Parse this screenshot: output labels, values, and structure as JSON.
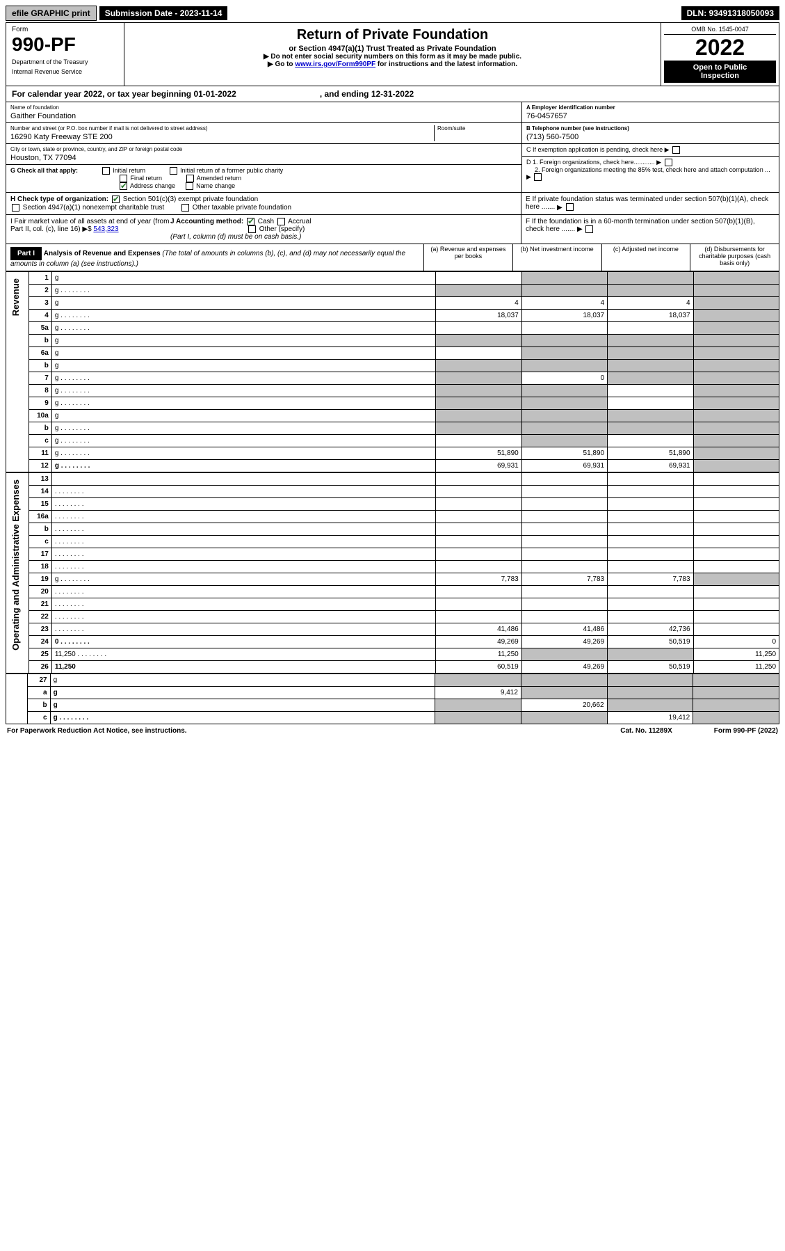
{
  "topbar": {
    "efile": "efile GRAPHIC print",
    "submission": "Submission Date - 2023-11-14",
    "dln": "DLN: 93491318050093"
  },
  "header": {
    "form_label": "Form",
    "form_num": "990-PF",
    "dept1": "Department of the Treasury",
    "dept2": "Internal Revenue Service",
    "title": "Return of Private Foundation",
    "subtitle": "or Section 4947(a)(1) Trust Treated as Private Foundation",
    "note1": "▶ Do not enter social security numbers on this form as it may be made public.",
    "note2_pre": "▶ Go to ",
    "note2_link": "www.irs.gov/Form990PF",
    "note2_post": " for instructions and the latest information.",
    "omb": "OMB No. 1545-0047",
    "year": "2022",
    "otp1": "Open to Public",
    "otp2": "Inspection"
  },
  "calyear": {
    "pre": "For calendar year 2022, or tax year beginning 01-01-2022",
    "post": ", and ending 12-31-2022"
  },
  "info": {
    "name_lbl": "Name of foundation",
    "name": "Gaither Foundation",
    "addr_lbl": "Number and street (or P.O. box number if mail is not delivered to street address)",
    "room_lbl": "Room/suite",
    "addr": "16290 Katy Freeway STE 200",
    "city_lbl": "City or town, state or province, country, and ZIP or foreign postal code",
    "city": "Houston, TX  77094",
    "a_lbl": "A Employer identification number",
    "a_val": "76-0457657",
    "b_lbl": "B Telephone number (see instructions)",
    "b_val": "(713) 560-7500",
    "c_lbl": "C If exemption application is pending, check here",
    "d1_lbl": "D 1. Foreign organizations, check here............",
    "d2_lbl": "2. Foreign organizations meeting the 85% test, check here and attach computation ...",
    "e_lbl": "E  If private foundation status was terminated under section 507(b)(1)(A), check here .......",
    "f_lbl": "F  If the foundation is in a 60-month termination under section 507(b)(1)(B), check here ......."
  },
  "g": {
    "label": "G Check all that apply:",
    "opts": [
      "Initial return",
      "Final return",
      "Address change",
      "Initial return of a former public charity",
      "Amended return",
      "Name change"
    ]
  },
  "h": {
    "label": "H Check type of organization:",
    "o1": "Section 501(c)(3) exempt private foundation",
    "o2": "Section 4947(a)(1) nonexempt charitable trust",
    "o3": "Other taxable private foundation"
  },
  "i": {
    "label": "I Fair market value of all assets at end of year (from Part II, col. (c), line 16)",
    "val": "543,323"
  },
  "j": {
    "label": "J Accounting method:",
    "o1": "Cash",
    "o2": "Accrual",
    "o3": "Other (specify)",
    "note": "(Part I, column (d) must be on cash basis.)"
  },
  "part1": {
    "tag": "Part I",
    "title": "Analysis of Revenue and Expenses",
    "title_note": "(The total of amounts in columns (b), (c), and (d) may not necessarily equal the amounts in column (a) (see instructions).)",
    "col_a": "(a)   Revenue and expenses per books",
    "col_b": "(b)   Net investment income",
    "col_c": "(c)   Adjusted net income",
    "col_d": "(d)   Disbursements for charitable purposes (cash basis only)"
  },
  "sides": {
    "revenue": "Revenue",
    "expenses": "Operating and Administrative Expenses"
  },
  "rows": [
    {
      "n": "1",
      "d": "g",
      "a": "",
      "b": "g",
      "c": "g"
    },
    {
      "n": "2",
      "d": "g",
      "dots": true,
      "a": "g",
      "b": "g",
      "c": "g"
    },
    {
      "n": "3",
      "d": "g",
      "a": "4",
      "b": "4",
      "c": "4"
    },
    {
      "n": "4",
      "d": "g",
      "dots": true,
      "a": "18,037",
      "b": "18,037",
      "c": "18,037"
    },
    {
      "n": "5a",
      "d": "g",
      "dots": true,
      "a": "",
      "b": "",
      "c": ""
    },
    {
      "n": "b",
      "d": "g",
      "half": true,
      "a": "g",
      "b": "g",
      "c": "g"
    },
    {
      "n": "6a",
      "d": "g",
      "a": "",
      "b": "g",
      "c": "g"
    },
    {
      "n": "b",
      "d": "g",
      "half": true,
      "a": "g",
      "b": "g",
      "c": "g"
    },
    {
      "n": "7",
      "d": "g",
      "dots": true,
      "a": "g",
      "b": "0",
      "c": "g"
    },
    {
      "n": "8",
      "d": "g",
      "dots": true,
      "a": "g",
      "b": "g",
      "c": ""
    },
    {
      "n": "9",
      "d": "g",
      "dots": true,
      "a": "g",
      "b": "g",
      "c": ""
    },
    {
      "n": "10a",
      "d": "g",
      "half": true,
      "a": "g",
      "b": "g",
      "c": "g"
    },
    {
      "n": "b",
      "d": "g",
      "dots": true,
      "half": true,
      "a": "g",
      "b": "g",
      "c": "g"
    },
    {
      "n": "c",
      "d": "g",
      "dots": true,
      "a": "",
      "b": "g",
      "c": ""
    },
    {
      "n": "11",
      "d": "g",
      "dots": true,
      "a": "51,890",
      "b": "51,890",
      "c": "51,890"
    },
    {
      "n": "12",
      "d": "g",
      "dots": true,
      "bold": true,
      "a": "69,931",
      "b": "69,931",
      "c": "69,931"
    }
  ],
  "exp_rows": [
    {
      "n": "13",
      "d": "",
      "a": "",
      "b": "",
      "c": ""
    },
    {
      "n": "14",
      "d": "",
      "dots": true,
      "a": "",
      "b": "",
      "c": ""
    },
    {
      "n": "15",
      "d": "",
      "dots": true,
      "a": "",
      "b": "",
      "c": ""
    },
    {
      "n": "16a",
      "d": "",
      "dots": true,
      "a": "",
      "b": "",
      "c": ""
    },
    {
      "n": "b",
      "d": "",
      "dots": true,
      "a": "",
      "b": "",
      "c": ""
    },
    {
      "n": "c",
      "d": "",
      "dots": true,
      "a": "",
      "b": "",
      "c": ""
    },
    {
      "n": "17",
      "d": "",
      "dots": true,
      "a": "",
      "b": "",
      "c": ""
    },
    {
      "n": "18",
      "d": "",
      "dots": true,
      "a": "",
      "b": "",
      "c": ""
    },
    {
      "n": "19",
      "d": "g",
      "dots": true,
      "a": "7,783",
      "b": "7,783",
      "c": "7,783"
    },
    {
      "n": "20",
      "d": "",
      "dots": true,
      "a": "",
      "b": "",
      "c": ""
    },
    {
      "n": "21",
      "d": "",
      "dots": true,
      "a": "",
      "b": "",
      "c": ""
    },
    {
      "n": "22",
      "d": "",
      "dots": true,
      "a": "",
      "b": "",
      "c": ""
    },
    {
      "n": "23",
      "d": "",
      "dots": true,
      "a": "41,486",
      "b": "41,486",
      "c": "42,736"
    },
    {
      "n": "24",
      "d": "0",
      "dots": true,
      "bold": true,
      "a": "49,269",
      "b": "49,269",
      "c": "50,519"
    },
    {
      "n": "25",
      "d": "11,250",
      "dots": true,
      "a": "11,250",
      "b": "g",
      "c": "g"
    },
    {
      "n": "26",
      "d": "11,250",
      "bold": true,
      "a": "60,519",
      "b": "49,269",
      "c": "50,519"
    }
  ],
  "final_rows": [
    {
      "n": "27",
      "d": "g",
      "a": "g",
      "b": "g",
      "c": "g"
    },
    {
      "n": "a",
      "d": "g",
      "bold": true,
      "a": "9,412",
      "b": "g",
      "c": "g"
    },
    {
      "n": "b",
      "d": "g",
      "bold": true,
      "a": "g",
      "b": "20,662",
      "c": "g"
    },
    {
      "n": "c",
      "d": "g",
      "dots": true,
      "bold": true,
      "a": "g",
      "b": "g",
      "c": "19,412"
    }
  ],
  "footer": {
    "left": "For Paperwork Reduction Act Notice, see instructions.",
    "mid": "Cat. No. 11289X",
    "right": "Form 990-PF (2022)"
  }
}
